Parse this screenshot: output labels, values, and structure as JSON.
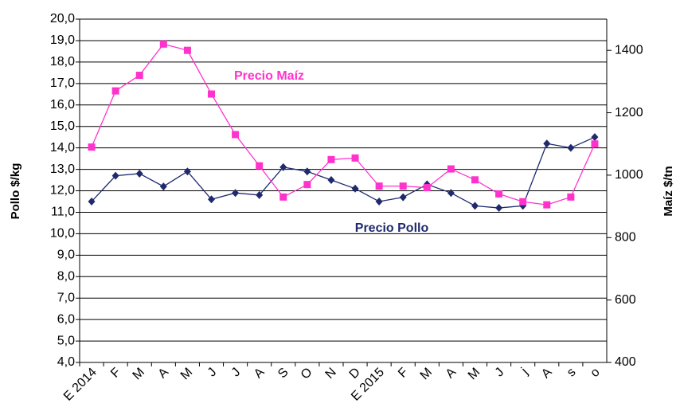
{
  "chart_data": {
    "type": "line",
    "y_label": "Pollo $/kg",
    "y2_label": "Maíz $/tn",
    "categories": [
      "E 2014",
      "F",
      "M",
      "A",
      "M",
      "J",
      "J",
      "A",
      "S",
      "O",
      "N",
      "D",
      "E 2015",
      "F",
      "M",
      "A",
      "M",
      "J",
      "j",
      "A",
      "s",
      "o"
    ],
    "series": [
      {
        "name": "Precio Pollo",
        "color": "#1f2a6e",
        "marker": "diamond",
        "axis": "y",
        "values": [
          11.5,
          12.7,
          12.8,
          12.2,
          12.9,
          11.6,
          11.9,
          11.8,
          13.1,
          12.9,
          12.5,
          12.1,
          11.5,
          11.7,
          12.3,
          11.9,
          11.3,
          11.2,
          11.3,
          14.2,
          14.0,
          14.5
        ]
      },
      {
        "name": "Precio Maíz",
        "color": "#ff33cc",
        "marker": "square",
        "axis": "y2",
        "values": [
          1090,
          1270,
          1320,
          1420,
          1400,
          1260,
          1130,
          1030,
          930,
          970,
          1050,
          1055,
          965,
          965,
          960,
          1020,
          985,
          940,
          915,
          905,
          930,
          1100
        ]
      }
    ],
    "ylim": [
      4,
      20
    ],
    "yticks": [
      {
        "value": 4,
        "label": "4,0"
      },
      {
        "value": 5,
        "label": "5,0"
      },
      {
        "value": 6,
        "label": "6,0"
      },
      {
        "value": 7,
        "label": "7,0"
      },
      {
        "value": 8,
        "label": "8,0"
      },
      {
        "value": 9,
        "label": "9,0"
      },
      {
        "value": 10,
        "label": "10,0"
      },
      {
        "value": 11,
        "label": "11,0"
      },
      {
        "value": 12,
        "label": "12,0"
      },
      {
        "value": 13,
        "label": "13,0"
      },
      {
        "value": 14,
        "label": "14,0"
      },
      {
        "value": 15,
        "label": "15,0"
      },
      {
        "value": 16,
        "label": "16,0"
      },
      {
        "value": 17,
        "label": "17,0"
      },
      {
        "value": 18,
        "label": "18,0"
      },
      {
        "value": 19,
        "label": "19,0"
      },
      {
        "value": 20,
        "label": "20,0"
      }
    ],
    "y2lim": [
      400,
      1500
    ],
    "y2ticks": [
      400,
      600,
      800,
      1000,
      1200,
      1400
    ],
    "grid": true
  }
}
